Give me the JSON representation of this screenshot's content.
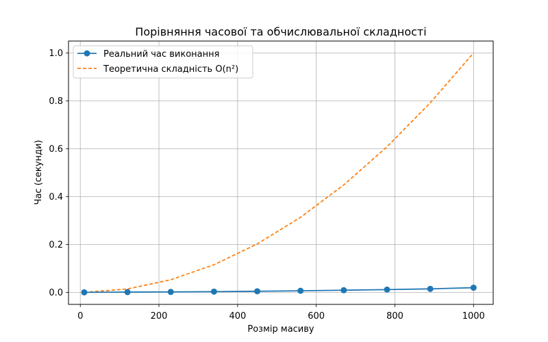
{
  "chart_data": {
    "type": "line",
    "title": "Порівняння часової та обчислювальної складності",
    "xlabel": "Розмір масиву",
    "ylabel": "Час (секунди)",
    "xlim": [
      -30,
      1050
    ],
    "ylim": [
      -0.05,
      1.05
    ],
    "xticks": [
      0,
      200,
      400,
      600,
      800,
      1000
    ],
    "yticks": [
      0.0,
      0.2,
      0.4,
      0.6,
      0.8,
      1.0
    ],
    "xtick_labels": [
      "0",
      "200",
      "400",
      "600",
      "800",
      "1000"
    ],
    "ytick_labels": [
      "0.0",
      "0.2",
      "0.4",
      "0.6",
      "0.8",
      "1.0"
    ],
    "grid": true,
    "legend_position": "top-left",
    "series": [
      {
        "name": "Реальний час виконання",
        "style": "solid-markers",
        "color": "#1f77b4",
        "x": [
          10,
          120,
          230,
          340,
          450,
          560,
          670,
          780,
          890,
          1000
        ],
        "y": [
          0.0002,
          0.0013,
          0.0021,
          0.0033,
          0.0048,
          0.0068,
          0.0092,
          0.0118,
          0.0148,
          0.0198
        ]
      },
      {
        "name": "Теоретична складність O(n²)",
        "style": "dashed",
        "color": "#ff7f0e",
        "x": [
          10,
          120,
          230,
          340,
          450,
          560,
          670,
          780,
          890,
          1000
        ],
        "y": [
          0.0001,
          0.0144,
          0.0529,
          0.1156,
          0.2025,
          0.3136,
          0.4489,
          0.6084,
          0.7921,
          1.0
        ]
      }
    ]
  }
}
